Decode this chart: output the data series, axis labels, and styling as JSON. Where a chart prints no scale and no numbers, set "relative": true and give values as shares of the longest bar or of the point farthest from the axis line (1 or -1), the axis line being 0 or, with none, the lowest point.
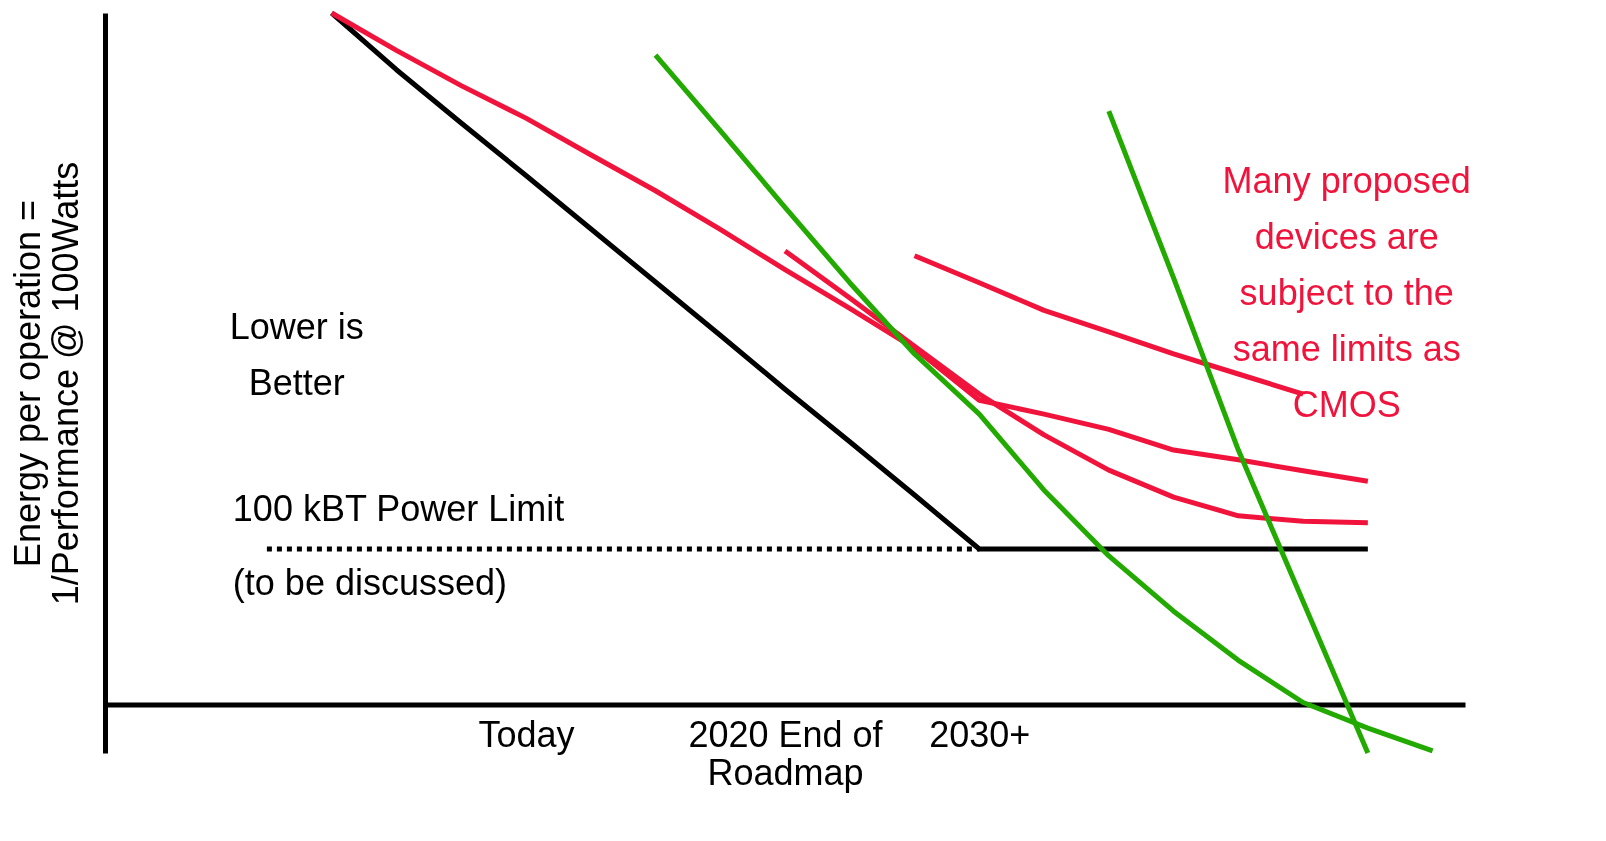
{
  "chart_data": {
    "type": "line",
    "relative": true,
    "ylabel": "Energy per operation =\n1/Performance @ 100Watts",
    "categories": [
      null,
      null,
      null,
      null,
      null,
      null,
      "Today",
      null,
      null,
      null,
      "2020 End of\nRoadmap",
      null,
      null,
      "2030+",
      null,
      null,
      null,
      null,
      null,
      null,
      null
    ],
    "grid": false,
    "series": [
      {
        "color": "#000000",
        "values": [
          null,
          null,
          null,
          1.0,
          0.918,
          0.841,
          0.765,
          0.688,
          0.611,
          0.534,
          0.456,
          0.38,
          0.303,
          0.225,
          0.225,
          0.225,
          0.225,
          0.225,
          0.225,
          0.225,
          null
        ]
      },
      {
        "color": "#000000",
        "line_style": "dotted",
        "values": [
          null,
          null,
          0.225,
          0.225,
          0.225,
          0.225,
          0.225,
          0.225,
          0.225,
          0.225,
          0.225,
          0.225,
          0.225,
          0.225,
          null,
          null,
          null,
          null,
          null,
          null,
          null
        ]
      },
      {
        "color": "#f0143c",
        "values": [
          null,
          null,
          null,
          1.0,
          0.946,
          0.895,
          0.848,
          0.795,
          0.743,
          0.687,
          0.629,
          0.573,
          0.515,
          0.44,
          0.42,
          0.398,
          0.368,
          0.354,
          0.338,
          0.323,
          null
        ]
      },
      {
        "color": "#f0143c",
        "values": [
          null,
          null,
          null,
          null,
          null,
          null,
          null,
          null,
          null,
          null,
          0.656,
          0.588,
          0.518,
          0.449,
          0.39,
          0.339,
          0.3,
          0.273,
          0.265,
          0.263,
          null
        ]
      },
      {
        "color": "#f0143c",
        "values": [
          null,
          null,
          null,
          null,
          null,
          null,
          null,
          null,
          null,
          null,
          null,
          null,
          0.649,
          0.61,
          0.57,
          0.539,
          0.507,
          0.478,
          0.449,
          null,
          null
        ]
      },
      {
        "color": "#22aa00",
        "values": [
          null,
          null,
          null,
          null,
          null,
          null,
          null,
          null,
          0.939,
          0.83,
          0.719,
          0.61,
          0.507,
          0.42,
          0.31,
          0.215,
          0.135,
          0.064,
          0.003,
          -0.034,
          -0.067
        ]
      },
      {
        "color": "#22aa00",
        "values": [
          null,
          null,
          null,
          null,
          null,
          null,
          null,
          null,
          null,
          null,
          null,
          null,
          null,
          null,
          null,
          0.858,
          0.617,
          0.368,
          0.149,
          -0.07,
          null
        ]
      }
    ],
    "annotations": [
      "Lower is\nBetter",
      "Many proposed\ndevices are\nsubject to the\nsame limits as\nCMOS",
      "100 kBT Power Limit\n(to be discussed)"
    ]
  }
}
